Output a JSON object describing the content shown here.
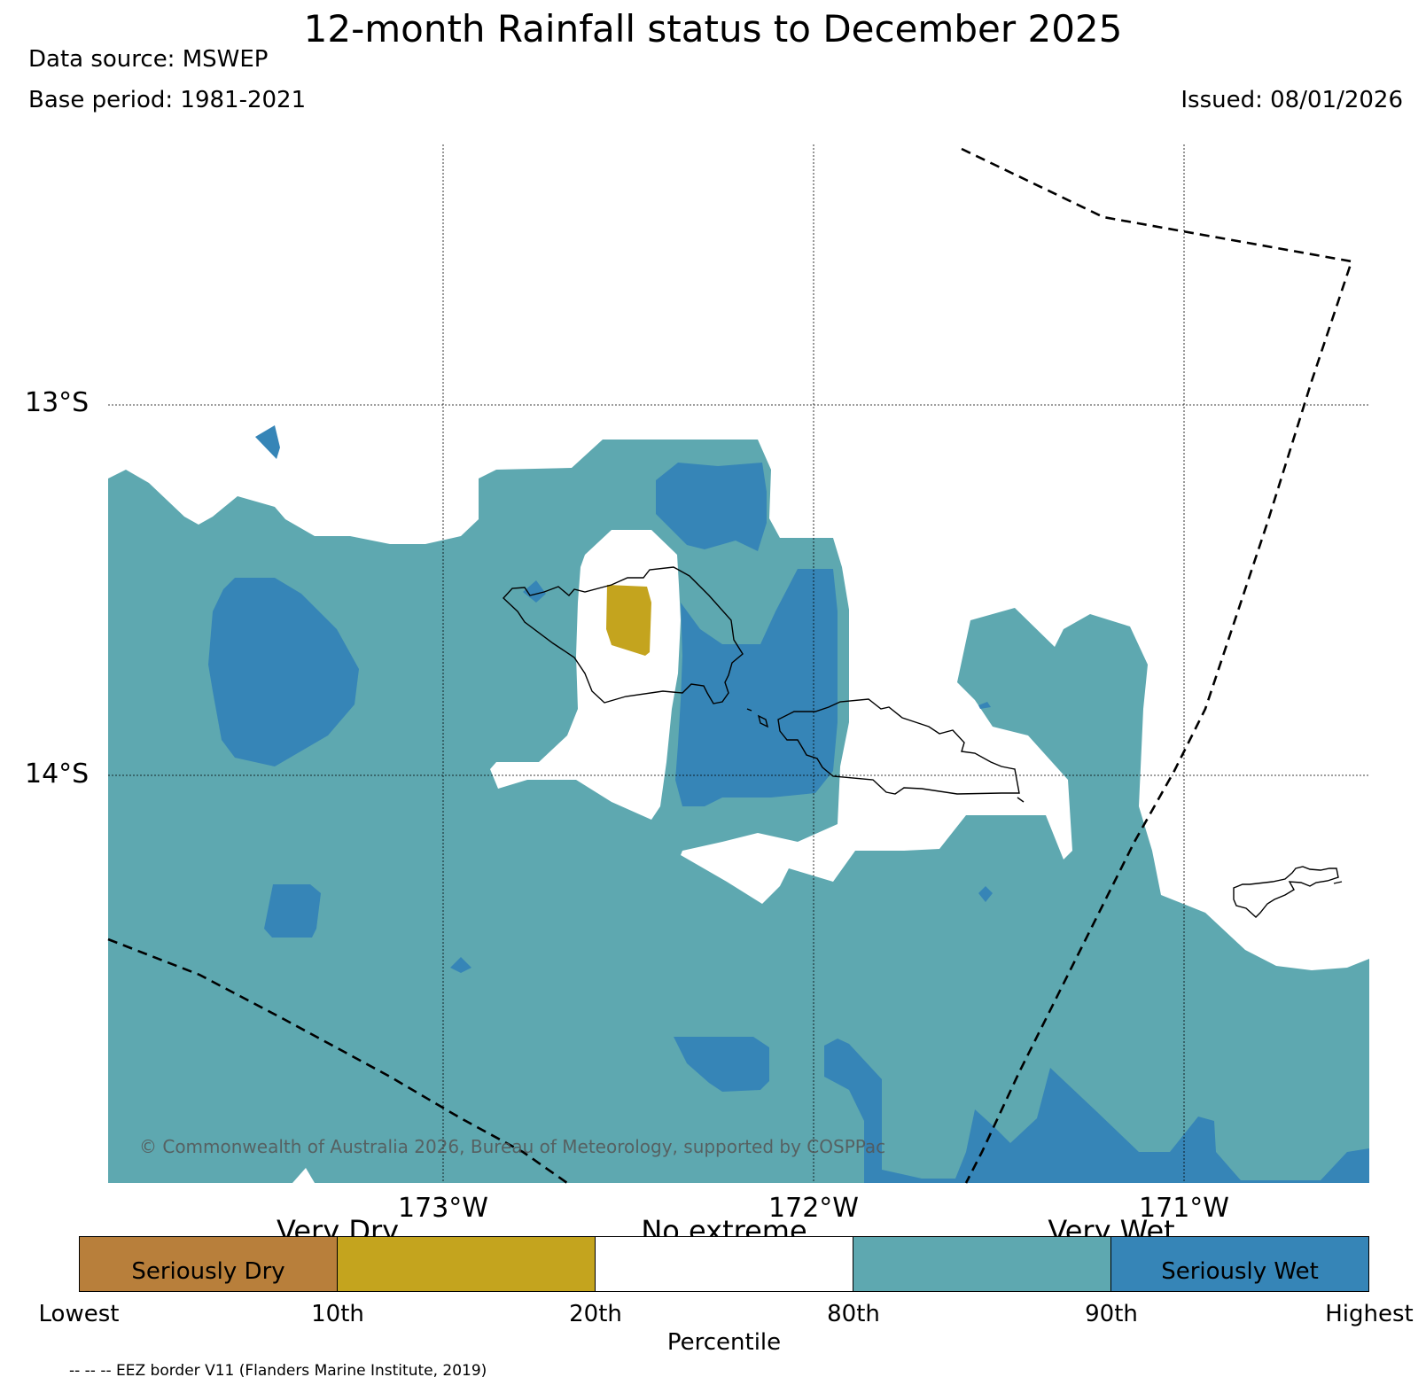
{
  "header": {
    "title": "12-month Rainfall status to December 2025",
    "data_source": "Data source: MSWEP",
    "base_period": "Base period: 1981-2021",
    "issued": "Issued: 08/01/2026"
  },
  "map": {
    "lat_labels": [
      "13°S",
      "14°S"
    ],
    "lon_labels": [
      "173°W",
      "172°W",
      "171°W"
    ],
    "copyright": "© Commonwealth of Australia 2026, Bureau of Meteorology, supported by COSPPac"
  },
  "legend": {
    "categories": [
      "Very Dry",
      "No extreme",
      "Very Wet"
    ],
    "boxes": [
      {
        "label": "Seriously Dry",
        "color": "#b87f3b"
      },
      {
        "label": "",
        "color": "#c4a41e"
      },
      {
        "label": "",
        "color": "#ffffff"
      },
      {
        "label": "",
        "color": "#5ea8b0"
      },
      {
        "label": "Seriously Wet",
        "color": "#3685b7"
      }
    ],
    "ticks": [
      "Lowest",
      "10th",
      "20th",
      "80th",
      "90th",
      "Highest"
    ],
    "axis_title": "Percentile"
  },
  "footer": {
    "eez_note": "-- -- -- EEZ border V11 (Flanders Marine Institute, 2019)"
  },
  "colors": {
    "very_wet": "#5ea8b0",
    "seriously_wet": "#3685b7",
    "very_dry": "#c4a41e",
    "seriously_dry": "#b87f3b",
    "no_extreme": "#ffffff"
  }
}
